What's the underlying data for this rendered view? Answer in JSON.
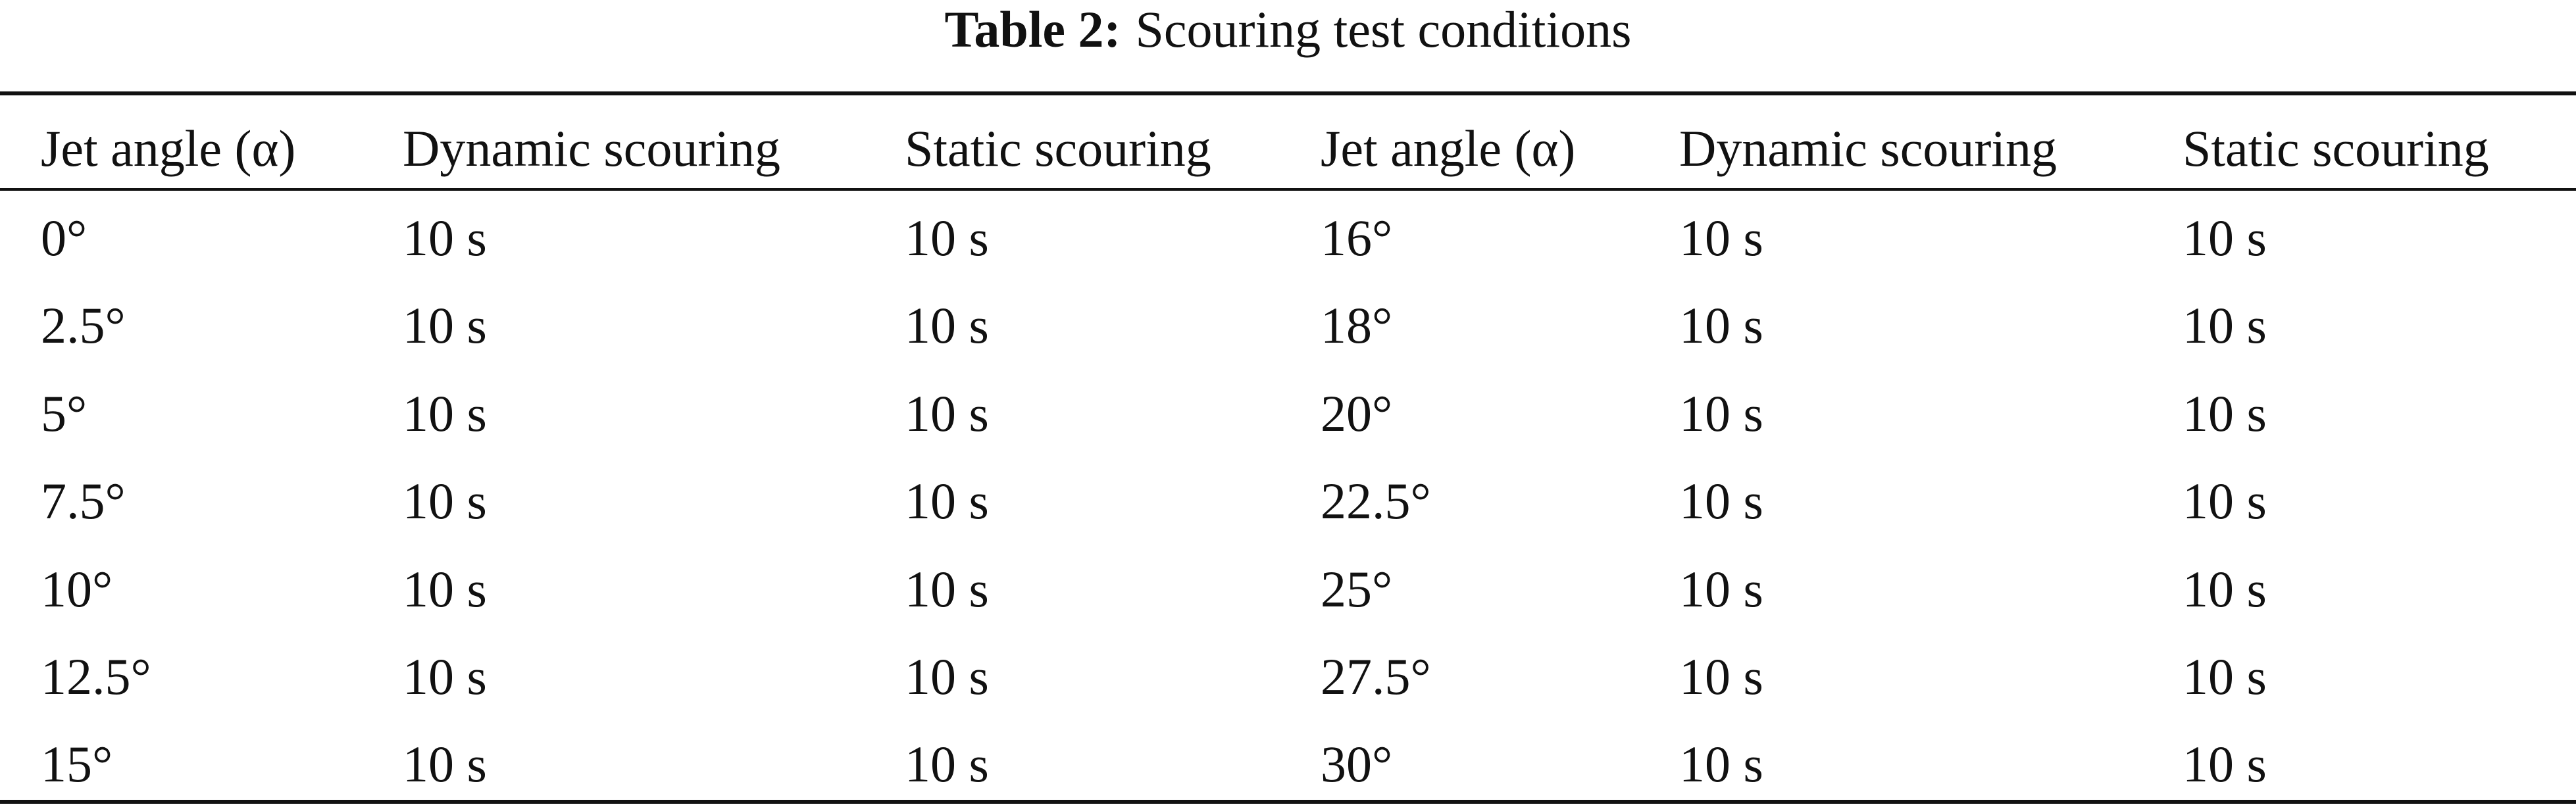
{
  "caption": {
    "label": "Table 2:",
    "text": "Scouring test conditions"
  },
  "table": {
    "header": [
      "Jet angle (α)",
      "Dynamic scouring",
      "Static scouring",
      "Jet angle (α)",
      "Dynamic scouring",
      "Static scouring"
    ],
    "rows": [
      [
        "0°",
        "10 s",
        "10 s",
        "16°",
        "10 s",
        "10 s"
      ],
      [
        "2.5°",
        "10 s",
        "10 s",
        "18°",
        "10 s",
        "10 s"
      ],
      [
        "5°",
        "10 s",
        "10 s",
        "20°",
        "10 s",
        "10 s"
      ],
      [
        "7.5°",
        "10 s",
        "10 s",
        "22.5°",
        "10 s",
        "10 s"
      ],
      [
        "10°",
        "10 s",
        "10 s",
        "25°",
        "10 s",
        "10 s"
      ],
      [
        "12.5°",
        "10 s",
        "10 s",
        "27.5°",
        "10 s",
        "10 s"
      ],
      [
        "15°",
        "10 s",
        "10 s",
        "30°",
        "10 s",
        "10 s"
      ]
    ]
  }
}
